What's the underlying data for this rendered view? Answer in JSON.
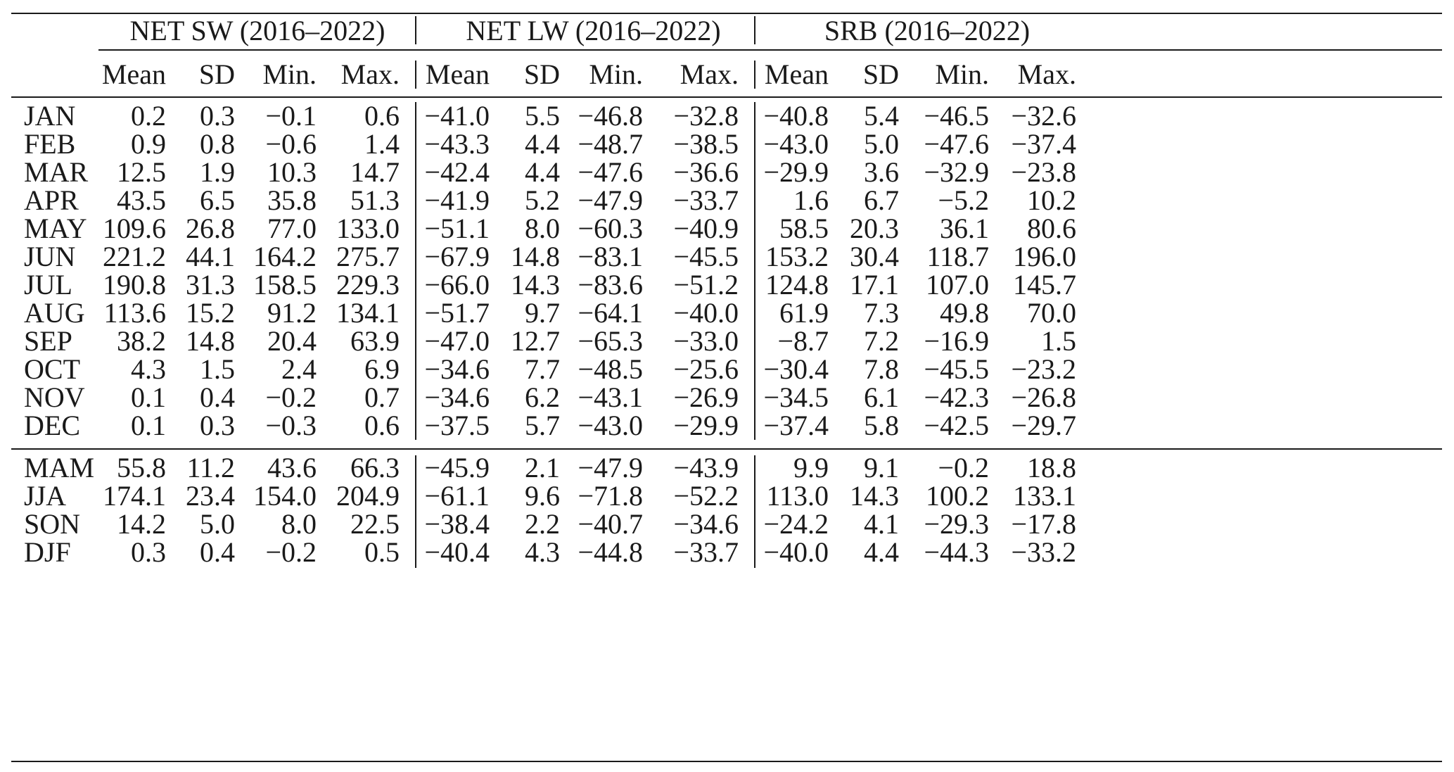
{
  "table": {
    "groups": [
      "NET SW (2016–2022)",
      "NET LW (2016–2022)",
      "SRB (2016–2022)"
    ],
    "subheaders": [
      "Mean",
      "SD",
      "Min.",
      "Max."
    ],
    "monthly_rows": [
      {
        "label": "JAN",
        "values": [
          "0.2",
          "0.3",
          "−0.1",
          "0.6",
          "−41.0",
          "5.5",
          "−46.8",
          "−32.8",
          "−40.8",
          "5.4",
          "−46.5",
          "−32.6"
        ]
      },
      {
        "label": "FEB",
        "values": [
          "0.9",
          "0.8",
          "−0.6",
          "1.4",
          "−43.3",
          "4.4",
          "−48.7",
          "−38.5",
          "−43.0",
          "5.0",
          "−47.6",
          "−37.4"
        ]
      },
      {
        "label": "MAR",
        "values": [
          "12.5",
          "1.9",
          "10.3",
          "14.7",
          "−42.4",
          "4.4",
          "−47.6",
          "−36.6",
          "−29.9",
          "3.6",
          "−32.9",
          "−23.8"
        ]
      },
      {
        "label": "APR",
        "values": [
          "43.5",
          "6.5",
          "35.8",
          "51.3",
          "−41.9",
          "5.2",
          "−47.9",
          "−33.7",
          "1.6",
          "6.7",
          "−5.2",
          "10.2"
        ]
      },
      {
        "label": "MAY",
        "values": [
          "109.6",
          "26.8",
          "77.0",
          "133.0",
          "−51.1",
          "8.0",
          "−60.3",
          "−40.9",
          "58.5",
          "20.3",
          "36.1",
          "80.6"
        ]
      },
      {
        "label": "JUN",
        "values": [
          "221.2",
          "44.1",
          "164.2",
          "275.7",
          "−67.9",
          "14.8",
          "−83.1",
          "−45.5",
          "153.2",
          "30.4",
          "118.7",
          "196.0"
        ]
      },
      {
        "label": "JUL",
        "values": [
          "190.8",
          "31.3",
          "158.5",
          "229.3",
          "−66.0",
          "14.3",
          "−83.6",
          "−51.2",
          "124.8",
          "17.1",
          "107.0",
          "145.7"
        ]
      },
      {
        "label": "AUG",
        "values": [
          "113.6",
          "15.2",
          "91.2",
          "134.1",
          "−51.7",
          "9.7",
          "−64.1",
          "−40.0",
          "61.9",
          "7.3",
          "49.8",
          "70.0"
        ]
      },
      {
        "label": "SEP",
        "values": [
          "38.2",
          "14.8",
          "20.4",
          "63.9",
          "−47.0",
          "12.7",
          "−65.3",
          "−33.0",
          "−8.7",
          "7.2",
          "−16.9",
          "1.5"
        ]
      },
      {
        "label": "OCT",
        "values": [
          "4.3",
          "1.5",
          "2.4",
          "6.9",
          "−34.6",
          "7.7",
          "−48.5",
          "−25.6",
          "−30.4",
          "7.8",
          "−45.5",
          "−23.2"
        ]
      },
      {
        "label": "NOV",
        "values": [
          "0.1",
          "0.4",
          "−0.2",
          "0.7",
          "−34.6",
          "6.2",
          "−43.1",
          "−26.9",
          "−34.5",
          "6.1",
          "−42.3",
          "−26.8"
        ]
      },
      {
        "label": "DEC",
        "values": [
          "0.1",
          "0.3",
          "−0.3",
          "0.6",
          "−37.5",
          "5.7",
          "−43.0",
          "−29.9",
          "−37.4",
          "5.8",
          "−42.5",
          "−29.7"
        ]
      }
    ],
    "season_rows": [
      {
        "label": "MAM",
        "values": [
          "55.8",
          "11.2",
          "43.6",
          "66.3",
          "−45.9",
          "2.1",
          "−47.9",
          "−43.9",
          "9.9",
          "9.1",
          "−0.2",
          "18.8"
        ]
      },
      {
        "label": "JJA",
        "values": [
          "174.1",
          "23.4",
          "154.0",
          "204.9",
          "−61.1",
          "9.6",
          "−71.8",
          "−52.2",
          "113.0",
          "14.3",
          "100.2",
          "133.1"
        ]
      },
      {
        "label": "SON",
        "values": [
          "14.2",
          "5.0",
          "8.0",
          "22.5",
          "−38.4",
          "2.2",
          "−40.7",
          "−34.6",
          "−24.2",
          "4.1",
          "−29.3",
          "−17.8"
        ]
      },
      {
        "label": "DJF",
        "values": [
          "0.3",
          "0.4",
          "−0.2",
          "0.5",
          "−40.4",
          "4.3",
          "−44.8",
          "−33.7",
          "−40.0",
          "4.4",
          "−44.3",
          "−33.2"
        ]
      }
    ]
  }
}
